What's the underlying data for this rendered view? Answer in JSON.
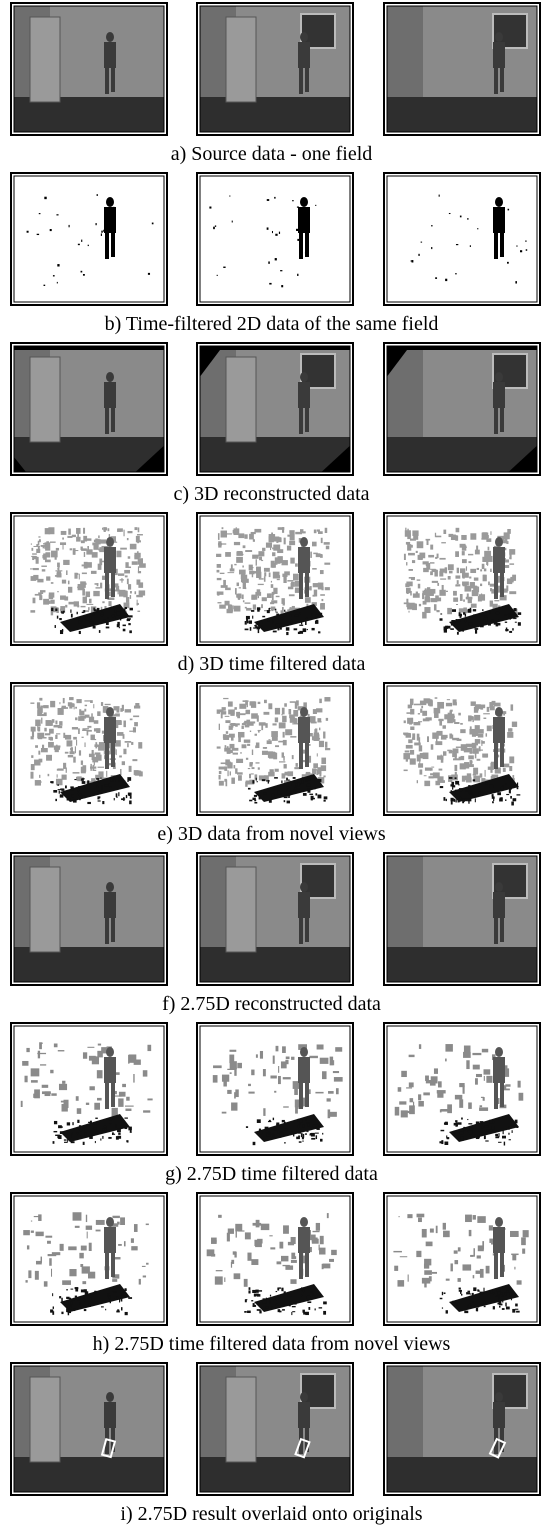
{
  "figure": {
    "rows": [
      {
        "caption": "a) Source data - one field"
      },
      {
        "caption": "b) Time-filtered 2D data of the same field"
      },
      {
        "caption": "c) 3D reconstructed data"
      },
      {
        "caption": "d) 3D time filtered data"
      },
      {
        "caption": "e) 3D data from novel views"
      },
      {
        "caption": "f) 2.75D reconstructed data"
      },
      {
        "caption": "g) 2.75D time filtered data"
      },
      {
        "caption": "h) 2.75D time filtered data from novel views"
      },
      {
        "caption": "i) 2.75D result overlaid onto originals"
      }
    ]
  }
}
